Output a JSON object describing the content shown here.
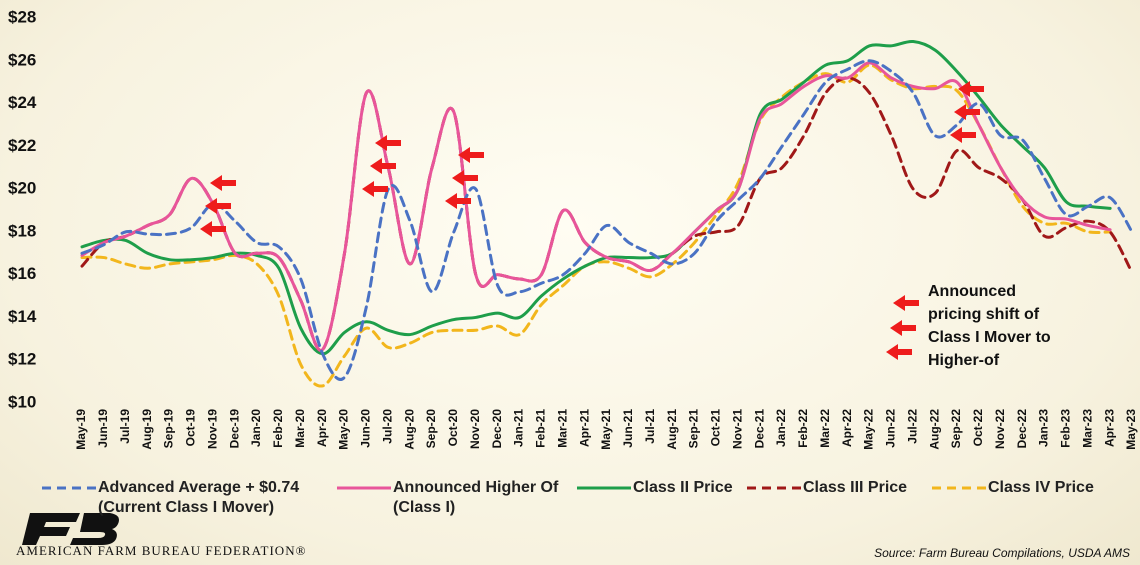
{
  "chart_data": {
    "type": "line",
    "categories": [
      "May-19",
      "Jun-19",
      "Jul-19",
      "Aug-19",
      "Sep-19",
      "Oct-19",
      "Nov-19",
      "Dec-19",
      "Jan-20",
      "Feb-20",
      "Mar-20",
      "Apr-20",
      "May-20",
      "Jun-20",
      "Jul-20",
      "Aug-20",
      "Sep-20",
      "Oct-20",
      "Nov-20",
      "Dec-20",
      "Jan-21",
      "Feb-21",
      "Mar-21",
      "Apr-21",
      "May-21",
      "Jun-21",
      "Jul-21",
      "Aug-21",
      "Sep-21",
      "Oct-21",
      "Nov-21",
      "Dec-21",
      "Jan-22",
      "Feb-22",
      "Mar-22",
      "Apr-22",
      "May-22",
      "Jun-22",
      "Jul-22",
      "Aug-22",
      "Sep-22",
      "Oct-22",
      "Nov-22",
      "Dec-22",
      "Jan-23",
      "Feb-23",
      "Mar-23",
      "Apr-23",
      "May-23"
    ],
    "ylim": [
      10,
      28
    ],
    "yticks": [
      {
        "value": 10,
        "label": "$10"
      },
      {
        "value": 12,
        "label": "$12"
      },
      {
        "value": 14,
        "label": "$14"
      },
      {
        "value": 16,
        "label": "$16"
      },
      {
        "value": 18,
        "label": "$18"
      },
      {
        "value": 20,
        "label": "$20"
      },
      {
        "value": 22,
        "label": "$22"
      },
      {
        "value": 24,
        "label": "$24"
      },
      {
        "value": 26,
        "label": "$26"
      },
      {
        "value": 28,
        "label": "$28"
      }
    ],
    "grid": false,
    "series": [
      {
        "name": "Advanced Average + $0.74 (Current Class I Mover)",
        "color": "#4a72c4",
        "dashed": true,
        "values": [
          17.0,
          17.4,
          18.0,
          17.9,
          17.9,
          18.2,
          19.3,
          18.5,
          17.5,
          17.3,
          15.8,
          12.3,
          11.2,
          14.5,
          20.0,
          18.5,
          15.2,
          18.0,
          20.0,
          15.5,
          15.2,
          15.6,
          16.0,
          17.0,
          18.3,
          17.5,
          17.0,
          16.5,
          17.0,
          18.5,
          19.5,
          20.5,
          22.0,
          23.5,
          25.0,
          25.6,
          26.0,
          25.5,
          24.5,
          22.5,
          23.0,
          24.0,
          22.5,
          22.3,
          20.5,
          18.8,
          19.2,
          19.6,
          18.0
        ]
      },
      {
        "name": "Announced Higher Of (Class I)",
        "color": "#e8559a",
        "dashed": false,
        "values": [
          16.9,
          17.5,
          17.8,
          18.3,
          18.8,
          20.5,
          19.3,
          17.0,
          17.0,
          16.8,
          14.8,
          12.5,
          17.0,
          24.5,
          21.0,
          16.5,
          21.0,
          23.6,
          16.0,
          16.0,
          15.8,
          16.0,
          19.0,
          17.5,
          16.8,
          16.6,
          16.2,
          17.0,
          18.0,
          19.0,
          20.0,
          23.3,
          24.0,
          24.8,
          25.3,
          25.2,
          25.9,
          25.2,
          24.8,
          24.7,
          25.0,
          23.0,
          21.0,
          19.5,
          18.7,
          18.6,
          18.3,
          18.1,
          null
        ]
      },
      {
        "name": "Class II Price",
        "color": "#1e9e4a",
        "dashed": false,
        "values": [
          17.3,
          17.6,
          17.6,
          17.0,
          16.7,
          16.7,
          16.8,
          17.0,
          16.9,
          16.3,
          13.5,
          12.3,
          13.3,
          13.8,
          13.4,
          13.2,
          13.6,
          13.9,
          14.0,
          14.2,
          14.0,
          15.0,
          15.8,
          16.4,
          16.8,
          16.8,
          16.8,
          17.0,
          18.0,
          19.0,
          20.0,
          23.5,
          24.2,
          25.0,
          25.8,
          26.0,
          26.7,
          26.7,
          26.9,
          26.5,
          25.5,
          24.3,
          23.0,
          22.0,
          21.0,
          19.4,
          19.2,
          19.1,
          null
        ]
      },
      {
        "name": "Class III Price",
        "color": "#a01818",
        "dashed": true,
        "values": [
          16.4,
          17.5,
          17.8,
          18.3,
          18.8,
          20.5,
          19.3,
          17.0,
          17.0,
          16.8,
          14.8,
          12.5,
          17.0,
          24.5,
          21.0,
          16.5,
          21.0,
          23.6,
          16.0,
          16.0,
          15.8,
          16.0,
          19.0,
          17.5,
          16.8,
          16.6,
          16.2,
          17.0,
          17.8,
          18.0,
          18.3,
          20.5,
          21.0,
          22.5,
          24.5,
          25.2,
          24.5,
          22.5,
          20.0,
          19.8,
          21.8,
          21.0,
          20.5,
          19.5,
          17.8,
          18.2,
          18.5,
          18.0,
          16.1
        ]
      },
      {
        "name": "Class IV Price",
        "color": "#f2b61c",
        "dashed": true,
        "values": [
          16.8,
          16.8,
          16.5,
          16.3,
          16.5,
          16.6,
          16.7,
          16.9,
          16.5,
          15.0,
          11.8,
          10.8,
          12.2,
          13.5,
          12.6,
          12.8,
          13.3,
          13.4,
          13.4,
          13.6,
          13.2,
          14.6,
          15.5,
          16.4,
          16.6,
          16.3,
          15.9,
          16.5,
          17.5,
          18.8,
          20.3,
          23.2,
          24.3,
          25.0,
          25.4,
          25.0,
          25.8,
          25.1,
          24.7,
          24.8,
          24.6,
          23.0,
          21.0,
          19.2,
          18.4,
          18.4,
          18.0,
          18.0,
          null
        ]
      }
    ],
    "annotation": "Announced pricing shift of Class I Mover to Higher-of",
    "source": "Source: Farm Bureau Compilations, USDA AMS",
    "organization": "AMERICAN FARM BUREAU FEDERATION®"
  }
}
